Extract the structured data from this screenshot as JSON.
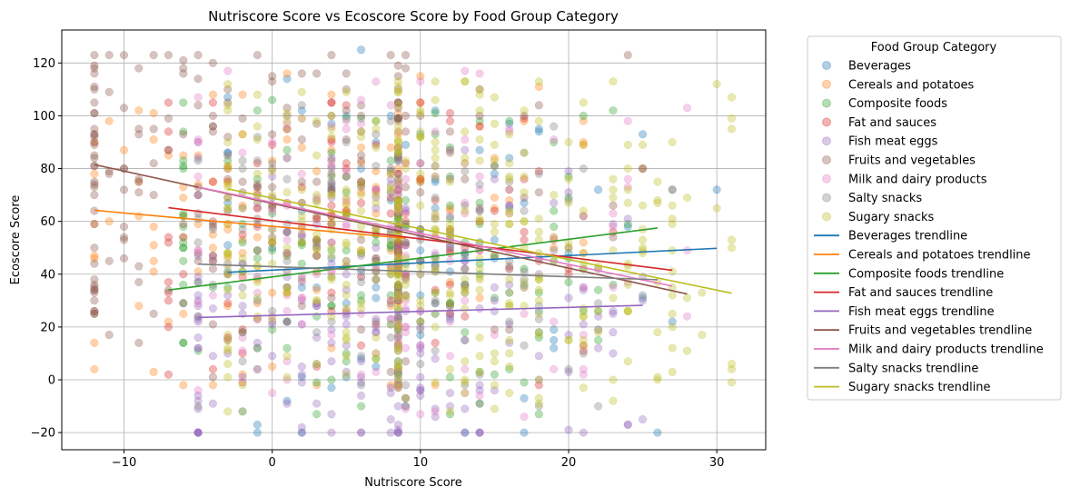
{
  "chart_data": {
    "type": "scatter",
    "title": "Nutriscore Score vs Ecoscore Score by Food Group Category",
    "xlabel": "Nutriscore Score",
    "ylabel": "Ecoscore Score",
    "xlim": [
      -14.2,
      33.3
    ],
    "ylim": [
      -26.5,
      132.5
    ],
    "x_ticks": [
      -10,
      0,
      10,
      20,
      30
    ],
    "y_ticks": [
      -20,
      0,
      20,
      40,
      60,
      80,
      100,
      120
    ],
    "x_tick_labels": [
      "−10",
      "0",
      "10",
      "20",
      "30"
    ],
    "y_tick_labels": [
      "−20",
      "0",
      "20",
      "40",
      "60",
      "80",
      "100",
      "120"
    ],
    "grid": true,
    "legend_placement": "outside-right",
    "legend_title": "Food Group Category",
    "series": [
      {
        "name": "Beverages",
        "color": "#1f77b4",
        "x_range": [
          -3,
          30
        ],
        "y_range": [
          -20,
          125
        ],
        "x_center": 9,
        "y_center": 45,
        "count": 110,
        "trend": [
          [
            -3,
            40.7
          ],
          [
            30,
            49.8
          ]
        ]
      },
      {
        "name": "Cereals and potatoes",
        "color": "#ff7f0e",
        "x_range": [
          -12,
          21
        ],
        "y_range": [
          -2,
          117
        ],
        "x_center": 2,
        "y_center": 60,
        "count": 150,
        "trend": [
          [
            -12,
            64.2
          ],
          [
            9,
            53.6
          ]
        ]
      },
      {
        "name": "Composite foods",
        "color": "#2ca02c",
        "x_range": [
          -6,
          26
        ],
        "y_range": [
          -13,
          106
        ],
        "x_center": 7,
        "y_center": 45,
        "count": 150,
        "trend": [
          [
            -7,
            34
          ],
          [
            26,
            57.5
          ]
        ]
      },
      {
        "name": "Fat and sauces",
        "color": "#d62728",
        "x_range": [
          -7,
          27
        ],
        "y_range": [
          -2,
          105
        ],
        "x_center": 5,
        "y_center": 55,
        "count": 110,
        "trend": [
          [
            -7,
            65.2
          ],
          [
            27,
            41.5
          ]
        ]
      },
      {
        "name": "Fish meat eggs",
        "color": "#9467bd",
        "x_range": [
          -5,
          25
        ],
        "y_range": [
          -20,
          104
        ],
        "x_center": 8,
        "y_center": 25,
        "count": 220,
        "trend": [
          [
            -5,
            23.6
          ],
          [
            25,
            28.2
          ]
        ]
      },
      {
        "name": "Fruits and vegetables",
        "color": "#8c564b",
        "x_range": [
          -12,
          26
        ],
        "y_range": [
          -3,
          123
        ],
        "x_center": -2,
        "y_center": 70,
        "count": 240,
        "trend": [
          [
            -12,
            81.5
          ],
          [
            28,
            32.5
          ]
        ]
      },
      {
        "name": "Milk and dairy products",
        "color": "#e377c2",
        "x_range": [
          -5,
          28
        ],
        "y_range": [
          -15,
          117
        ],
        "x_center": 8,
        "y_center": 55,
        "count": 160,
        "trend": [
          [
            -5,
            73
          ],
          [
            27,
            35.5
          ]
        ]
      },
      {
        "name": "Salty snacks",
        "color": "#7f7f7f",
        "x_range": [
          -5,
          27
        ],
        "y_range": [
          -10,
          110
        ],
        "x_center": 8,
        "y_center": 40,
        "count": 120,
        "trend": [
          [
            -5,
            43.8
          ],
          [
            26,
            37.9
          ]
        ]
      },
      {
        "name": "Sugary snacks",
        "color": "#bcbd22",
        "x_range": [
          -3,
          31
        ],
        "y_range": [
          -12,
          113
        ],
        "x_center": 12,
        "y_center": 50,
        "count": 420,
        "trend": [
          [
            -3,
            72.3
          ],
          [
            31,
            32.8
          ]
        ]
      }
    ]
  }
}
